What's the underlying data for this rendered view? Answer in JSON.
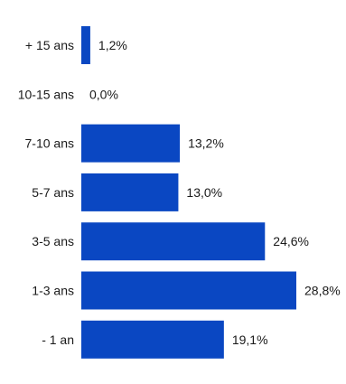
{
  "chart_data": {
    "type": "bar",
    "orientation": "horizontal",
    "categories": [
      "+ 15 ans",
      "10-15 ans",
      "7-10 ans",
      "5-7 ans",
      "3-5 ans",
      "1-3 ans",
      "- 1 an"
    ],
    "values": [
      1.2,
      0.0,
      13.2,
      13.0,
      24.6,
      28.8,
      19.1
    ],
    "value_labels": [
      "1,2%",
      "0,0%",
      "13,2%",
      "13,0%",
      "24,6%",
      "28,8%",
      "19,1%"
    ],
    "bar_color": "#0a47c2",
    "xlim": [
      0,
      100
    ],
    "grid": false,
    "legend": "none",
    "title": "",
    "xlabel": "",
    "ylabel": ""
  }
}
